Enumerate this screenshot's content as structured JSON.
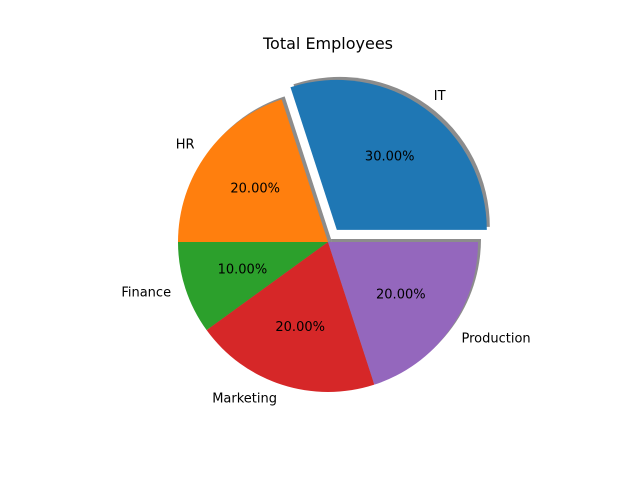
{
  "chart_data": {
    "type": "pie",
    "title": "Total Employees",
    "categories": [
      "IT",
      "HR",
      "Finance",
      "Marketing",
      "Production"
    ],
    "values": [
      30,
      20,
      10,
      20,
      20
    ],
    "percent_labels": [
      "30.00%",
      "20.00%",
      "10.00%",
      "20.00%",
      "20.00%"
    ],
    "colors": [
      "#1f77b4",
      "#ff7f0e",
      "#2ca02c",
      "#d62728",
      "#9467bd"
    ],
    "explode": [
      0.1,
      0,
      0,
      0,
      0
    ],
    "shadow": true,
    "start_angle_deg": 0,
    "legend": "none"
  }
}
